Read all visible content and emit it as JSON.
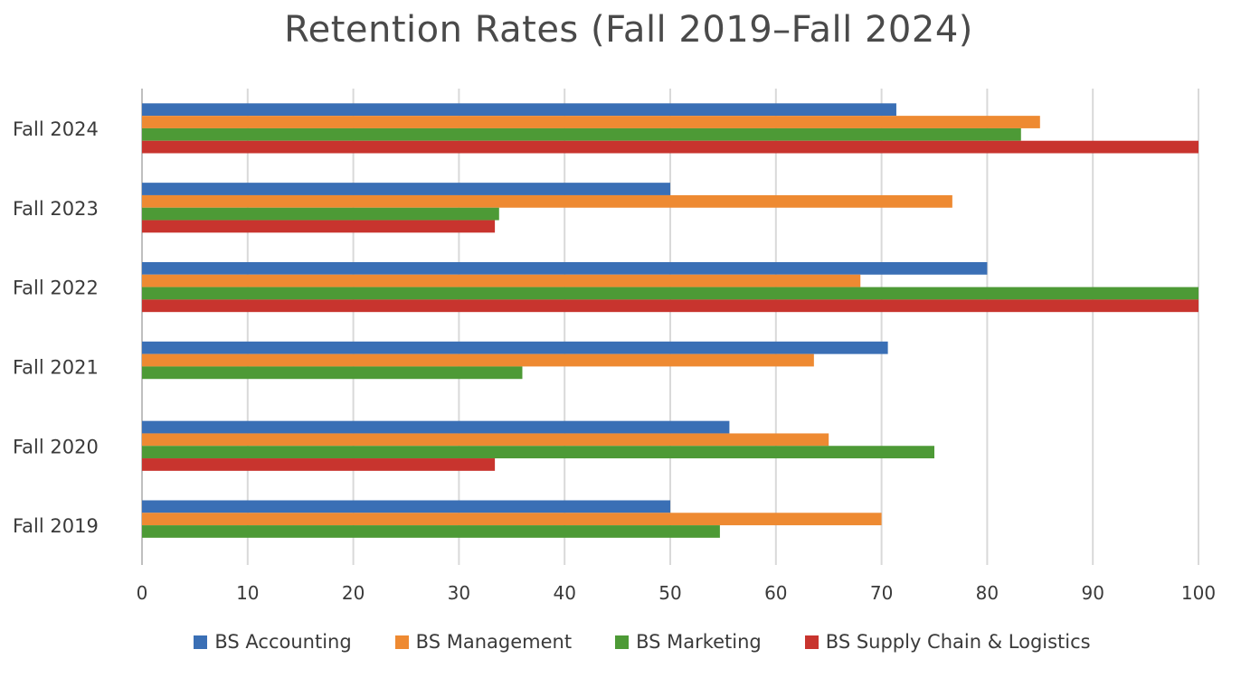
{
  "chart_data": {
    "type": "bar",
    "orientation": "horizontal",
    "title": "Retention Rates (Fall 2019–Fall 2024)",
    "xlabel": "",
    "ylabel": "",
    "xlim": [
      0,
      100
    ],
    "xticks": [
      0,
      10,
      20,
      30,
      40,
      50,
      60,
      70,
      80,
      90,
      100
    ],
    "grid": true,
    "legend_position": "bottom",
    "categories": [
      "Fall 2019",
      "Fall 2020",
      "Fall 2021",
      "Fall 2022",
      "Fall 2023",
      "Fall 2024"
    ],
    "series": [
      {
        "name": "BS Accounting",
        "color": "#3a6fb5",
        "values": [
          50,
          55.6,
          70.6,
          80,
          50,
          71.4
        ]
      },
      {
        "name": "BS Management",
        "color": "#ee8a32",
        "values": [
          70,
          65,
          63.6,
          68,
          76.7,
          85
        ]
      },
      {
        "name": "BS Marketing",
        "color": "#4d9a36",
        "values": [
          54.7,
          75,
          36,
          100,
          33.8,
          83.2
        ]
      },
      {
        "name": "BS Supply Chain & Logistics",
        "color": "#c8342e",
        "values": [
          null,
          33.4,
          null,
          100,
          33.4,
          100
        ]
      }
    ]
  }
}
